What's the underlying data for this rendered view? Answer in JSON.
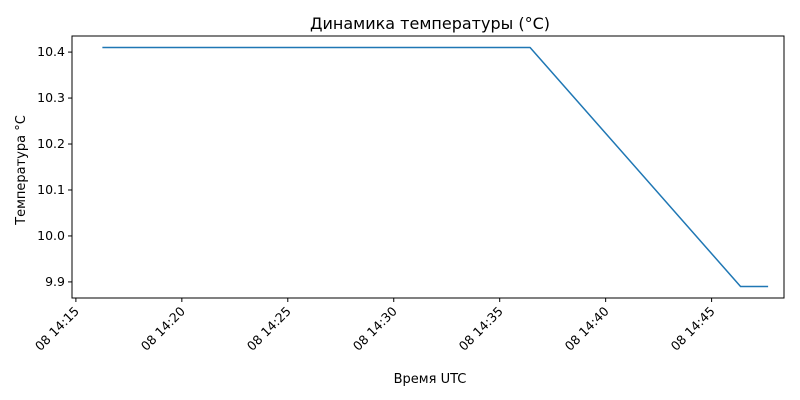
{
  "chart_data": {
    "type": "line",
    "title": "Динамика температуры (°C)",
    "xlabel": "Время UTC",
    "ylabel": "Температура °C",
    "grid": false,
    "series": [
      {
        "color": "#1f77b4",
        "points": [
          {
            "x": "14:16:15",
            "y": 10.41
          },
          {
            "x": "14:36:26",
            "y": 10.41
          },
          {
            "x": "14:46:22",
            "y": 9.89
          },
          {
            "x": "14:47:40",
            "y": 9.89
          }
        ]
      }
    ],
    "xlim": [
      "14:14:49",
      "14:48:25"
    ],
    "ylim": [
      9.865,
      10.435
    ],
    "x_ticks": [
      {
        "value": "14:15:00",
        "label": "08 14:15"
      },
      {
        "value": "14:20:00",
        "label": "08 14:20"
      },
      {
        "value": "14:25:00",
        "label": "08 14:25"
      },
      {
        "value": "14:30:00",
        "label": "08 14:30"
      },
      {
        "value": "14:35:00",
        "label": "08 14:35"
      },
      {
        "value": "14:40:00",
        "label": "08 14:40"
      },
      {
        "value": "14:45:00",
        "label": "08 14:45"
      }
    ],
    "y_ticks": [
      {
        "value": 9.9,
        "label": "9.9"
      },
      {
        "value": 10.0,
        "label": "10.0"
      },
      {
        "value": 10.1,
        "label": "10.1"
      },
      {
        "value": 10.2,
        "label": "10.2"
      },
      {
        "value": 10.3,
        "label": "10.3"
      },
      {
        "value": 10.4,
        "label": "10.4"
      }
    ]
  }
}
